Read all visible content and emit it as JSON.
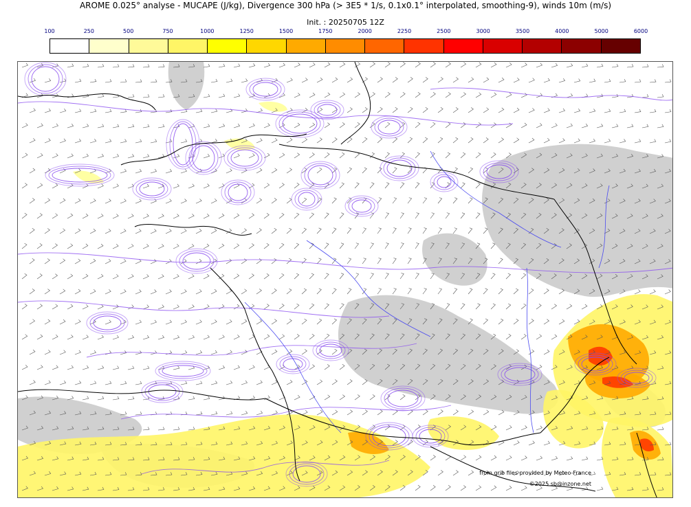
{
  "header": {
    "title": "AROME 0.025° analyse - MUCAPE (J/kg), Divergence 300 hPa (> 3E5 * 1/s, 0.1x0.1° interpolated, smoothing-9), winds 10m (m/s)",
    "init": "Init. : 20250705 12Z"
  },
  "colorbar": {
    "levels": [
      "100",
      "250",
      "500",
      "750",
      "1000",
      "1250",
      "1500",
      "1750",
      "2000",
      "2250",
      "2500",
      "3000",
      "3500",
      "4000",
      "5000",
      "6000"
    ],
    "colors": [
      "#ffffff",
      "#ffffcc",
      "#fffa99",
      "#fff566",
      "#ffff00",
      "#ffd700",
      "#ffaa00",
      "#ff8c00",
      "#ff6600",
      "#ff3300",
      "#ff0000",
      "#d90000",
      "#b30000",
      "#8c0000",
      "#660000"
    ]
  },
  "map": {
    "colors": {
      "coast": "#000000",
      "divergence_contour": "#8a4cf0",
      "river": "#4a4af0",
      "wind_barb": "#555555",
      "grey_cloud": "#c8c8c8"
    }
  },
  "credits": {
    "source": "from grib files provided by Meteo-France",
    "copyright": "©2025 sb@inzone.net"
  }
}
